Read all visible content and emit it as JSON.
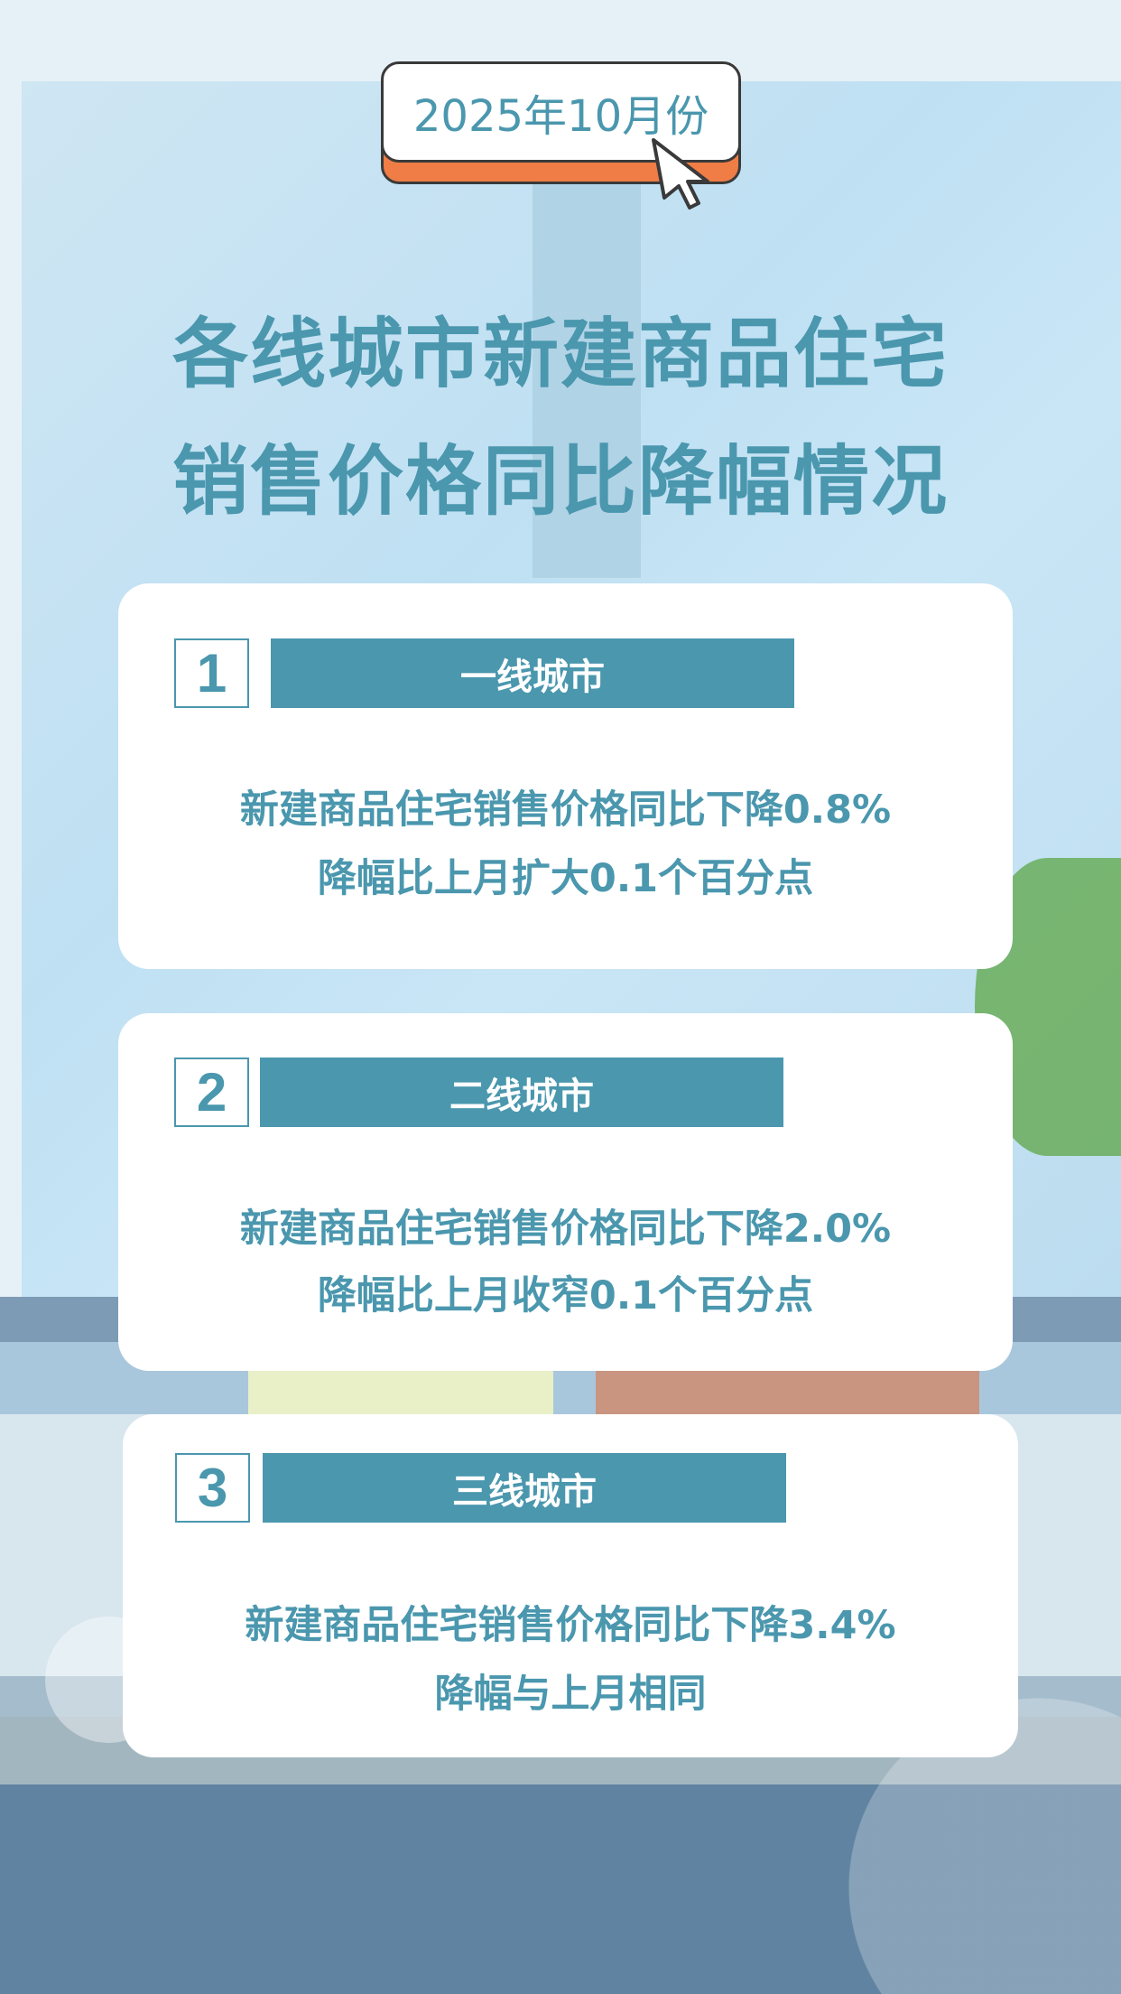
{
  "badge": {
    "text": "2025年10月份",
    "icon": "cursor-arrow-icon"
  },
  "title": {
    "line1": "各线城市新建商品住宅",
    "line2": "销售价格同比降幅情况"
  },
  "cards": [
    {
      "number": "1",
      "label": "一线城市",
      "line1": "新建商品住宅销售价格同比下降0.8%",
      "line2": "降幅比上月扩大0.1个百分点"
    },
    {
      "number": "2",
      "label": "二线城市",
      "line1": "新建商品住宅销售价格同比下降2.0%",
      "line2": "降幅比上月收窄0.1个百分点"
    },
    {
      "number": "3",
      "label": "三线城市",
      "line1": "新建商品住宅销售价格同比下降3.4%",
      "line2": "降幅与上月相同"
    }
  ],
  "colors": {
    "accent": "#4a97ae",
    "badge_shadow": "#ef7d45"
  }
}
